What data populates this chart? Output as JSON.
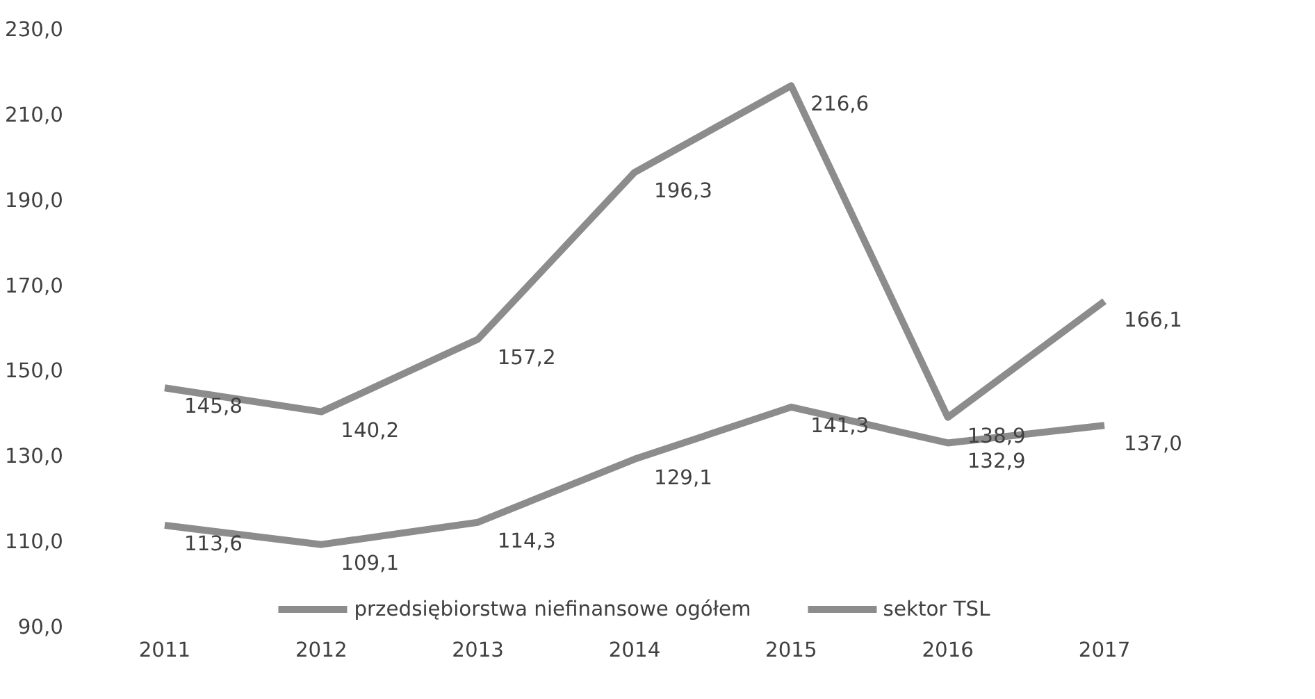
{
  "chart_data": {
    "type": "line",
    "categories": [
      "2011",
      "2012",
      "2013",
      "2014",
      "2015",
      "2016",
      "2017"
    ],
    "series": [
      {
        "name": "przedsiębiorstwa niefinansowe ogółem",
        "color": "#8c8c8c",
        "values": [
          113.6,
          109.1,
          114.3,
          129.1,
          141.3,
          132.9,
          137.0
        ],
        "value_labels": [
          "113,6",
          "109,1",
          "114,3",
          "129,1",
          "141,3",
          "132,9",
          "137,0"
        ]
      },
      {
        "name": "sektor TSL",
        "color": "#8c8c8c",
        "values": [
          145.8,
          140.2,
          157.2,
          196.3,
          216.6,
          138.9,
          166.1
        ],
        "value_labels": [
          "145,8",
          "140,2",
          "157,2",
          "196,3",
          "216,6",
          "138,9",
          "166,1"
        ]
      }
    ],
    "ylim": [
      90,
      230
    ],
    "yticks": [
      {
        "value": 90,
        "label": "90,0"
      },
      {
        "value": 110,
        "label": "110,0"
      },
      {
        "value": 130,
        "label": "130,0"
      },
      {
        "value": 150,
        "label": "150,0"
      },
      {
        "value": 170,
        "label": "170,0"
      },
      {
        "value": 190,
        "label": "190,0"
      },
      {
        "value": 210,
        "label": "210,0"
      },
      {
        "value": 230,
        "label": "230,0"
      }
    ],
    "grid": false,
    "legend": "bottom",
    "marker": "none",
    "line_style": "solid"
  }
}
